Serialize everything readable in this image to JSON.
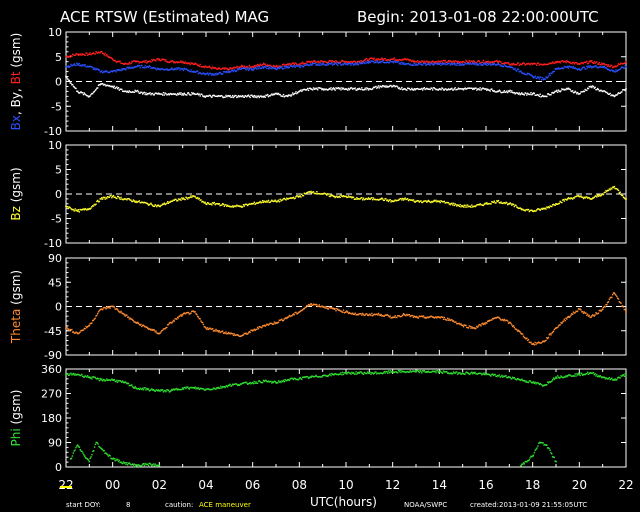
{
  "header": {
    "title": "ACE RTSW (Estimated) MAG",
    "begin": "Begin: 2013-01-08 22:00:00UTC"
  },
  "footer": {
    "xlabel": "UTC(hours)",
    "doy_label": "start DOY:",
    "doy_value": "8",
    "caution_label": "caution:",
    "caution_value": "ACE maneuver",
    "credit": "NOAA/SWPC",
    "created": "created:2013-01-09 21:55:05UTC"
  },
  "colors": {
    "bt": "#ff2020",
    "bx": "#ffffff",
    "by": "#2a50ff",
    "bz": "#ffff30",
    "theta": "#ff8c30",
    "phi": "#30e030",
    "frame": "#ffffff",
    "caution": "#ffff00"
  },
  "chart_data": [
    {
      "type": "scatter",
      "ylabel_parts": [
        {
          "text": "Bx",
          "color": "#2a50ff"
        },
        {
          "text": ", By, ",
          "color": "#ffffff"
        },
        {
          "text": "Bt",
          "color": "#ff2020"
        },
        {
          "text": " (gsm)",
          "color": "#ffffff"
        }
      ],
      "ylim": [
        -10,
        10
      ],
      "yticks": [
        "-10",
        "-5",
        "0",
        "5",
        "10"
      ],
      "zero_line": 0,
      "x_range_hours": [
        0,
        24
      ],
      "series": [
        {
          "name": "Bt",
          "color": "#ff2020",
          "x": [
            0,
            0.5,
            1,
            1.5,
            2,
            2.5,
            3,
            3.5,
            4,
            4.5,
            5,
            5.5,
            6,
            6.5,
            7,
            7.5,
            8,
            8.5,
            9,
            9.5,
            10,
            10.5,
            11,
            11.5,
            12,
            12.5,
            13,
            13.5,
            14,
            14.5,
            15,
            15.5,
            16,
            16.5,
            17,
            17.5,
            18,
            18.5,
            19,
            19.5,
            20,
            20.5,
            21,
            21.5,
            22,
            22.5,
            23,
            23.5,
            24
          ],
          "y": [
            5,
            5.5,
            5.5,
            6,
            4.5,
            3.5,
            4,
            4,
            4.5,
            4,
            4,
            3.5,
            3,
            2.5,
            2.5,
            3,
            3,
            3.5,
            3,
            3.5,
            3.5,
            4,
            4,
            4,
            4,
            4,
            4.5,
            4.5,
            4.5,
            4.5,
            4,
            4,
            4,
            4,
            4,
            4,
            4,
            4,
            3.5,
            3.5,
            3.5,
            3.5,
            4,
            4,
            3.5,
            4,
            3.5,
            3,
            4
          ]
        },
        {
          "name": "By",
          "color": "#2a50ff",
          "x": [
            0,
            0.5,
            1,
            1.5,
            2,
            2.5,
            3,
            3.5,
            4,
            4.5,
            5,
            5.5,
            6,
            6.5,
            7,
            7.5,
            8,
            8.5,
            9,
            9.5,
            10,
            10.5,
            11,
            11.5,
            12,
            12.5,
            13,
            13.5,
            14,
            14.5,
            15,
            15.5,
            16,
            16.5,
            17,
            17.5,
            18,
            18.5,
            19,
            19.5,
            20,
            20.5,
            21,
            21.5,
            22,
            22.5,
            23,
            23.5,
            24
          ],
          "y": [
            3,
            3.5,
            3,
            2,
            2,
            2.5,
            3,
            3,
            2.5,
            2.5,
            2.5,
            2,
            1.5,
            1.5,
            2,
            2.5,
            2.5,
            3,
            2.5,
            3,
            3,
            3.5,
            3.5,
            3.5,
            3.5,
            3.5,
            4,
            4,
            4,
            3.5,
            3.5,
            3.5,
            3.5,
            3.5,
            3.5,
            3.5,
            3.5,
            3.5,
            3,
            2,
            1,
            0.5,
            2.5,
            3,
            2.5,
            3,
            3,
            2,
            3
          ]
        },
        {
          "name": "Bx",
          "color": "#ffffff",
          "x": [
            0,
            0.5,
            1,
            1.5,
            2,
            2.5,
            3,
            3.5,
            4,
            4.5,
            5,
            5.5,
            6,
            6.5,
            7,
            7.5,
            8,
            8.5,
            9,
            9.5,
            10,
            10.5,
            11,
            11.5,
            12,
            12.5,
            13,
            13.5,
            14,
            14.5,
            15,
            15.5,
            16,
            16.5,
            17,
            17.5,
            18,
            18.5,
            19,
            19.5,
            20,
            20.5,
            21,
            21.5,
            22,
            22.5,
            23,
            23.5,
            24
          ],
          "y": [
            1,
            -2,
            -3,
            -0.5,
            -1,
            -2,
            -2,
            -2.5,
            -2.5,
            -2.5,
            -2.5,
            -2.5,
            -3,
            -3,
            -3,
            -3,
            -3,
            -3,
            -2.5,
            -3,
            -2,
            -1.5,
            -1.5,
            -1.5,
            -1.5,
            -1.5,
            -1.5,
            -1,
            -1,
            -1.5,
            -1.5,
            -1.5,
            -1.5,
            -1.5,
            -1.5,
            -1.5,
            -1.5,
            -2,
            -2,
            -2.5,
            -2.5,
            -3,
            -2,
            -1.5,
            -2.5,
            -1,
            -2,
            -3,
            -1.5
          ]
        }
      ]
    },
    {
      "type": "scatter",
      "ylabel_parts": [
        {
          "text": "Bz",
          "color": "#ffff30"
        },
        {
          "text": " (gsm)",
          "color": "#ffffff"
        }
      ],
      "ylim": [
        -10,
        10
      ],
      "yticks": [
        "-10",
        "-5",
        "0",
        "5",
        "10"
      ],
      "zero_line": 0,
      "x_range_hours": [
        0,
        24
      ],
      "series": [
        {
          "name": "Bz",
          "color": "#ffff30",
          "x": [
            0,
            0.5,
            1,
            1.5,
            2,
            2.5,
            3,
            3.5,
            4,
            4.5,
            5,
            5.5,
            6,
            6.5,
            7,
            7.5,
            8,
            8.5,
            9,
            9.5,
            10,
            10.5,
            11,
            11.5,
            12,
            12.5,
            13,
            13.5,
            14,
            14.5,
            15,
            15.5,
            16,
            16.5,
            17,
            17.5,
            18,
            18.5,
            19,
            19.5,
            20,
            20.5,
            21,
            21.5,
            22,
            22.5,
            23,
            23.5,
            24
          ],
          "y": [
            -2.5,
            -3.5,
            -3,
            -1,
            -0.5,
            -1,
            -1.5,
            -2,
            -2.5,
            -1.5,
            -1,
            -0.5,
            -2,
            -2,
            -2.5,
            -2.5,
            -2,
            -1.5,
            -1.5,
            -1,
            -0.5,
            0.5,
            0,
            -0.5,
            -0.5,
            -1,
            -1,
            -1,
            -1.5,
            -1,
            -1.5,
            -1.5,
            -1.5,
            -2,
            -2.5,
            -2.5,
            -2,
            -1.5,
            -2,
            -3,
            -3.5,
            -3,
            -2,
            -1,
            -0.5,
            -1,
            0,
            1.5,
            -1
          ]
        }
      ]
    },
    {
      "type": "scatter",
      "ylabel_parts": [
        {
          "text": "Theta",
          "color": "#ff8c30"
        },
        {
          "text": " (gsm)",
          "color": "#ffffff"
        }
      ],
      "ylim": [
        -90,
        90
      ],
      "yticks": [
        "-90",
        "-45",
        "0",
        "45",
        "90"
      ],
      "zero_line": 0,
      "x_range_hours": [
        0,
        24
      ],
      "series": [
        {
          "name": "Theta",
          "color": "#ff8c30",
          "x": [
            0,
            0.5,
            1,
            1.5,
            2,
            2.5,
            3,
            3.5,
            4,
            4.5,
            5,
            5.5,
            6,
            6.5,
            7,
            7.5,
            8,
            8.5,
            9,
            9.5,
            10,
            10.5,
            11,
            11.5,
            12,
            12.5,
            13,
            13.5,
            14,
            14.5,
            15,
            15.5,
            16,
            16.5,
            17,
            17.5,
            18,
            18.5,
            19,
            19.5,
            20,
            20.5,
            21,
            21.5,
            22,
            22.5,
            23,
            23.5,
            24
          ],
          "y": [
            -40,
            -50,
            -35,
            -5,
            0,
            -15,
            -30,
            -40,
            -50,
            -30,
            -15,
            -10,
            -40,
            -45,
            -50,
            -55,
            -45,
            -35,
            -30,
            -20,
            -10,
            5,
            0,
            -5,
            -10,
            -15,
            -15,
            -15,
            -20,
            -15,
            -20,
            -20,
            -20,
            -25,
            -35,
            -40,
            -30,
            -20,
            -30,
            -50,
            -70,
            -65,
            -40,
            -20,
            -5,
            -20,
            -5,
            25,
            -10
          ]
        }
      ]
    },
    {
      "type": "scatter",
      "ylabel_parts": [
        {
          "text": "Phi",
          "color": "#30e030"
        },
        {
          "text": " (gsm)",
          "color": "#ffffff"
        }
      ],
      "ylim": [
        0,
        360
      ],
      "yticks": [
        "0",
        "90",
        "180",
        "270",
        "360"
      ],
      "zero_line": null,
      "x_range_hours": [
        0,
        24
      ],
      "series": [
        {
          "name": "Phi",
          "color": "#30e030",
          "x": [
            0,
            0.5,
            1,
            1.5,
            2,
            2.5,
            3,
            3.5,
            4,
            4.5,
            5,
            5.5,
            6,
            6.5,
            7,
            7.5,
            8,
            8.5,
            9,
            9.5,
            10,
            10.5,
            11,
            11.5,
            12,
            12.5,
            13,
            13.5,
            14,
            14.5,
            15,
            15.5,
            16,
            16.5,
            17,
            17.5,
            18,
            18.5,
            19,
            19.5,
            20,
            20.5,
            21,
            21.5,
            22,
            22.5,
            23,
            23.5,
            24
          ],
          "y": [
            340,
            340,
            330,
            320,
            320,
            310,
            290,
            285,
            280,
            280,
            290,
            290,
            285,
            290,
            300,
            305,
            310,
            315,
            310,
            320,
            325,
            330,
            335,
            340,
            345,
            345,
            345,
            345,
            350,
            350,
            350,
            350,
            350,
            345,
            345,
            345,
            340,
            335,
            330,
            320,
            310,
            300,
            330,
            335,
            340,
            345,
            330,
            320,
            340
          ]
        },
        {
          "name": "Phi",
          "color": "#30e030",
          "x": [
            0.2,
            0.5,
            0.8,
            1.0,
            1.3,
            1.6,
            2.0,
            2.5,
            3.0,
            3.5,
            4.0,
            19.5,
            20.0,
            20.3,
            20.6,
            21.0
          ],
          "y": [
            30,
            80,
            40,
            20,
            90,
            60,
            30,
            15,
            5,
            10,
            5,
            5,
            40,
            90,
            80,
            20
          ]
        }
      ]
    }
  ],
  "x_axis": {
    "tick_labels": [
      "22",
      "00",
      "02",
      "04",
      "06",
      "08",
      "10",
      "12",
      "14",
      "16",
      "18",
      "20",
      "22"
    ]
  }
}
